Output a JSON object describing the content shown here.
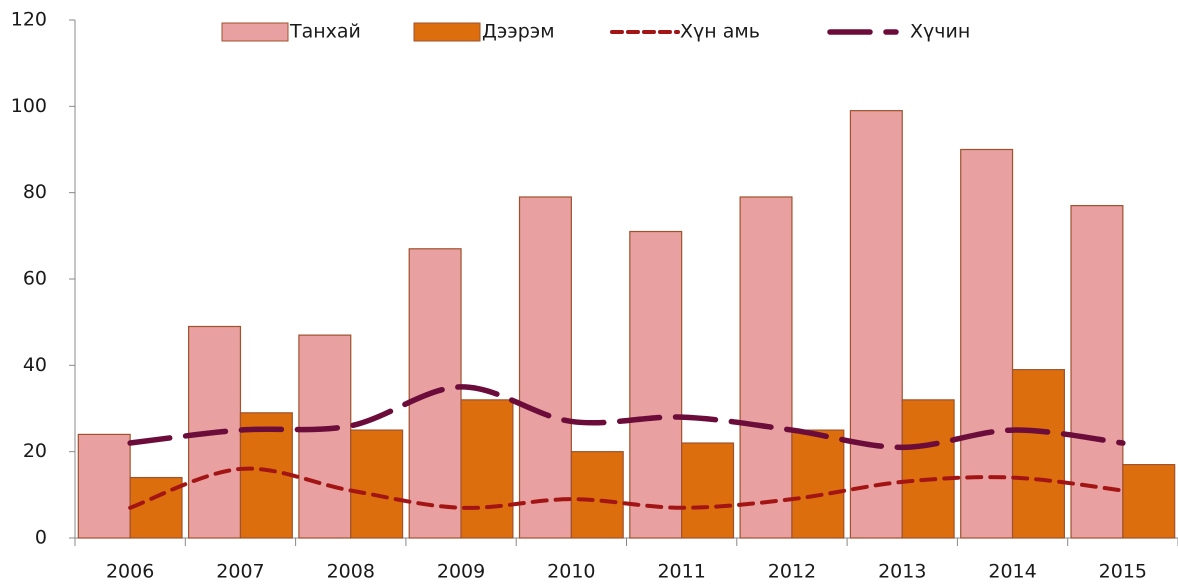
{
  "chart_data": {
    "type": "bar_line",
    "categories": [
      "2006",
      "2007",
      "2008",
      "2009",
      "2010",
      "2011",
      "2012",
      "2013",
      "2014",
      "2015"
    ],
    "series": [
      {
        "name": "Танхай",
        "type": "bar",
        "color": "#e8a0a0",
        "values": [
          24,
          49,
          47,
          67,
          79,
          71,
          79,
          99,
          90,
          77
        ]
      },
      {
        "name": "Дээрэм",
        "type": "bar",
        "color": "#dd6e0d",
        "values": [
          14,
          29,
          25,
          32,
          20,
          22,
          25,
          32,
          39,
          17
        ]
      },
      {
        "name": "Хүн амь",
        "type": "line",
        "color": "#a31515",
        "values": [
          7,
          16,
          11,
          7,
          9,
          7,
          9,
          13,
          14,
          11
        ]
      },
      {
        "name": "Хүчин",
        "type": "line",
        "color": "#6b0c3a",
        "values": [
          22,
          25,
          26,
          35,
          27,
          28,
          25,
          21,
          25,
          22
        ]
      }
    ],
    "ylim": [
      0,
      120
    ],
    "yticks": [
      0,
      20,
      40,
      60,
      80,
      100,
      120
    ],
    "grid": false
  }
}
